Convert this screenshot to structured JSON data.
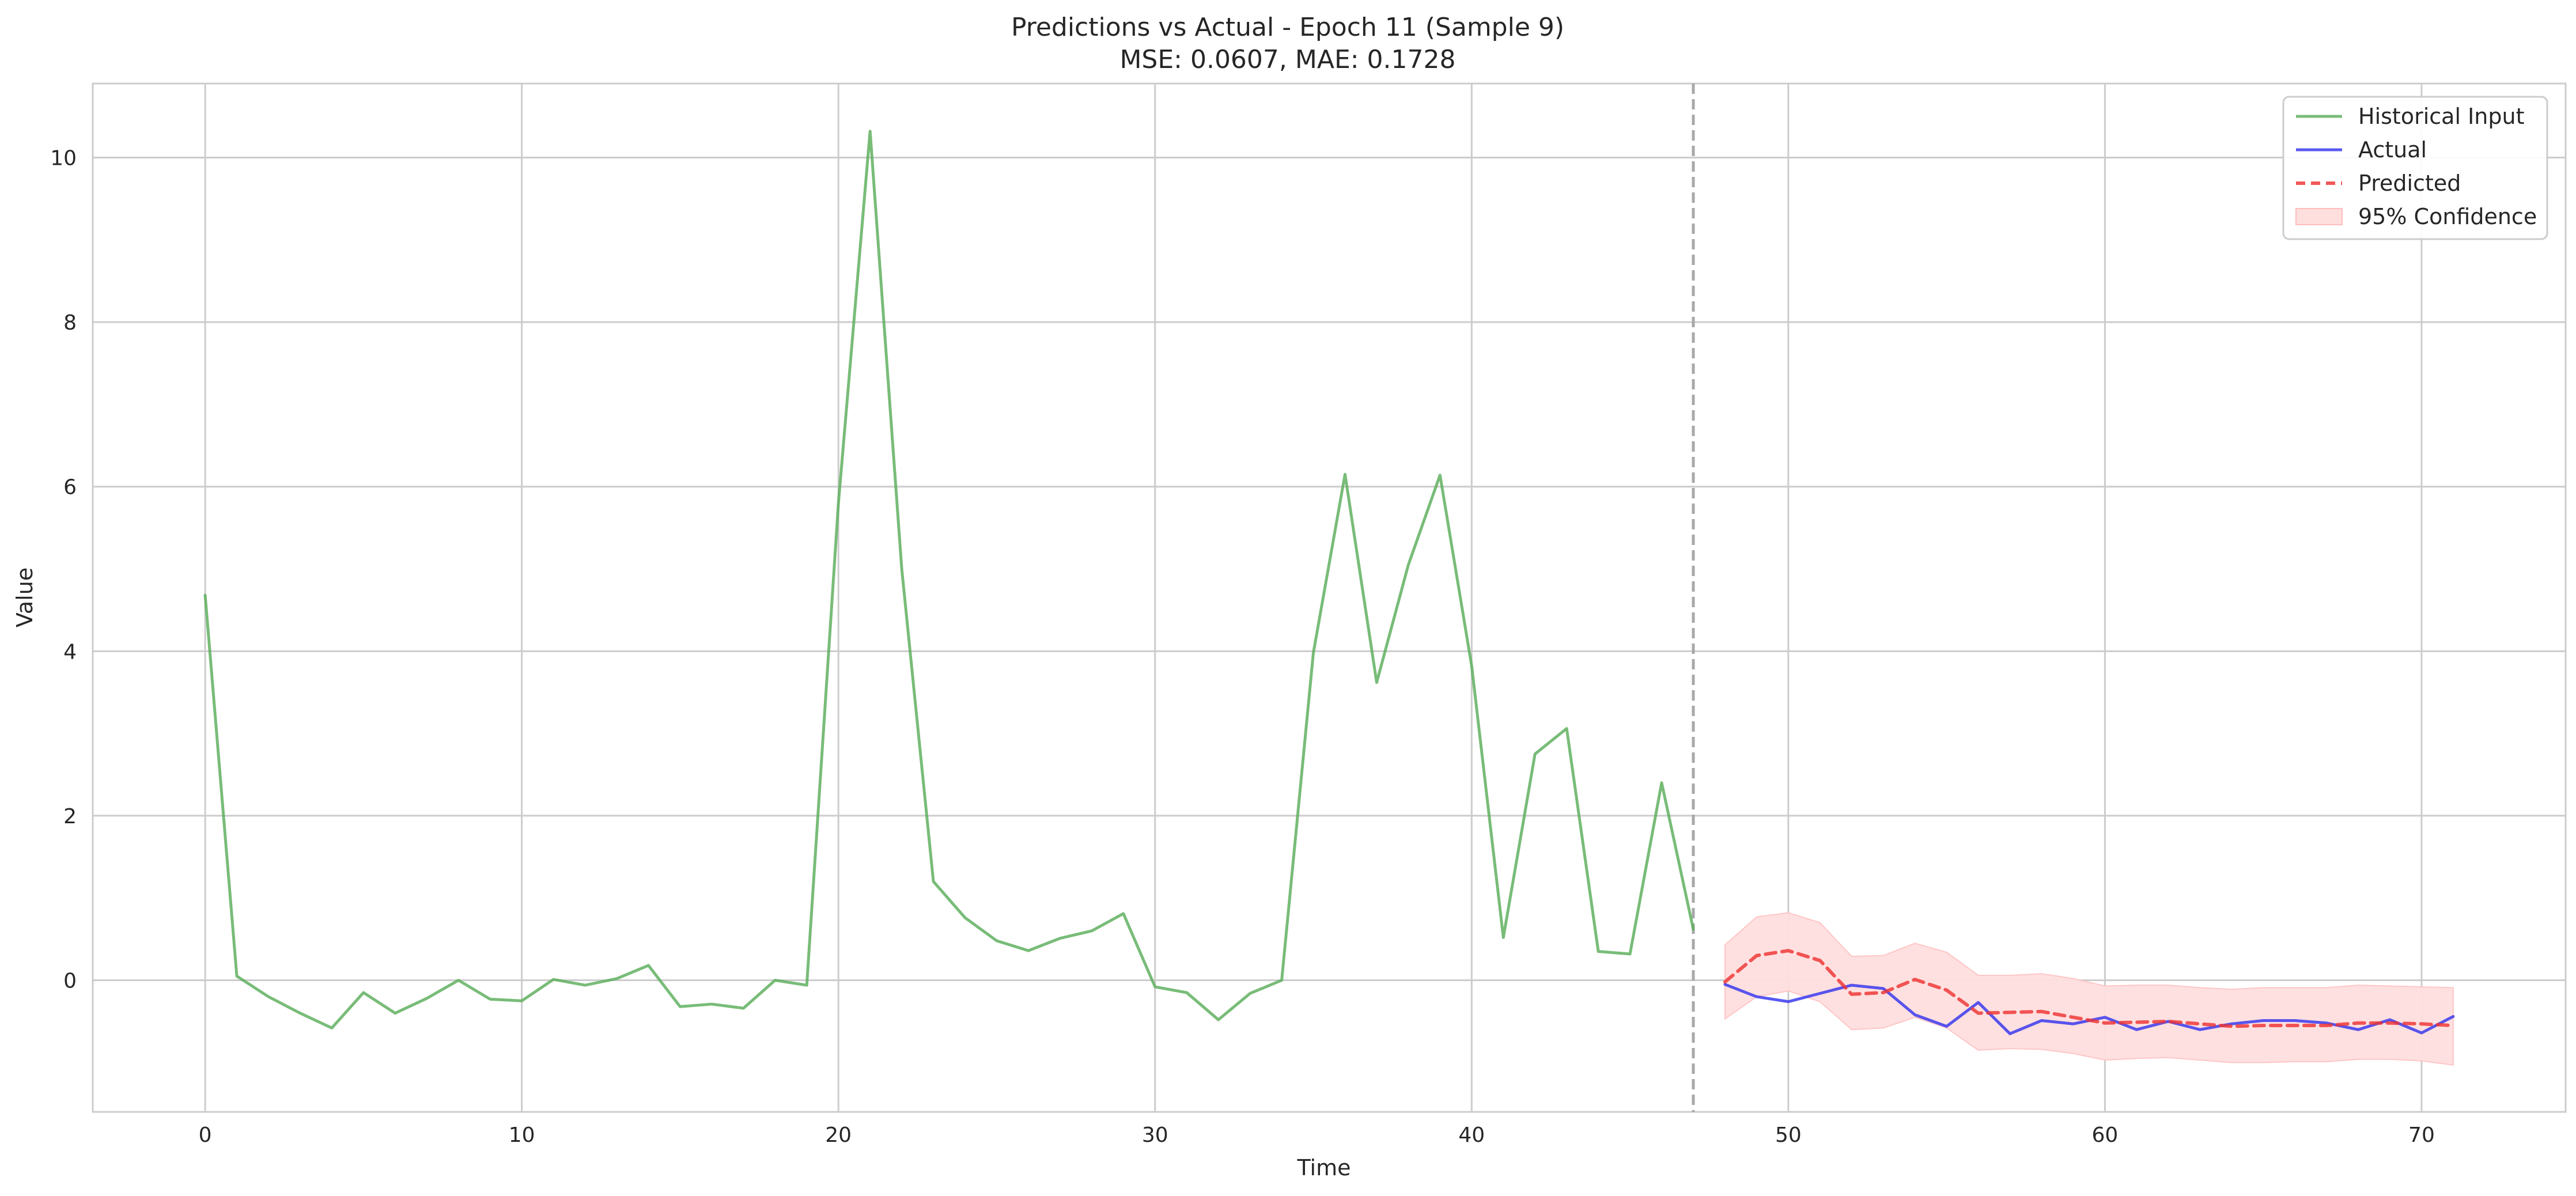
{
  "chart_data": {
    "type": "line",
    "title": "Predictions vs Actual - Epoch 11 (Sample 9)",
    "subtitle": "MSE: 0.0607, MAE: 0.1728",
    "xlabel": "Time",
    "ylabel": "Value",
    "xlim": [
      -3.55,
      74.55
    ],
    "ylim": [
      -1.6,
      10.9
    ],
    "xticks": [
      0,
      10,
      20,
      30,
      40,
      50,
      60,
      70
    ],
    "yticks": [
      0,
      2,
      4,
      6,
      8,
      10
    ],
    "grid": true,
    "legend_position": "top-right",
    "forecast_start_marker": 47,
    "series": [
      {
        "name": "Historical Input",
        "color": "#5aad5a",
        "style": "solid",
        "x": [
          0,
          1,
          2,
          3,
          4,
          5,
          6,
          7,
          8,
          9,
          10,
          11,
          12,
          13,
          14,
          15,
          16,
          17,
          18,
          19,
          20,
          21,
          22,
          23,
          24,
          25,
          26,
          27,
          28,
          29,
          30,
          31,
          32,
          33,
          34,
          35,
          36,
          37,
          38,
          39,
          40,
          41,
          42,
          43,
          44,
          45,
          46,
          47
        ],
        "values": [
          4.68,
          0.05,
          -0.2,
          -0.4,
          -0.58,
          -0.15,
          -0.4,
          -0.22,
          0.0,
          -0.23,
          -0.25,
          0.01,
          -0.06,
          0.02,
          0.18,
          -0.32,
          -0.29,
          -0.34,
          0.0,
          -0.06,
          5.8,
          10.32,
          5.0,
          1.2,
          0.76,
          0.48,
          0.36,
          0.51,
          0.6,
          0.81,
          -0.08,
          -0.15,
          -0.48,
          -0.16,
          0.0,
          3.98,
          6.15,
          3.62,
          5.05,
          6.14,
          3.82,
          0.52,
          2.75,
          3.06,
          0.35,
          0.32,
          2.4,
          0.62
        ]
      },
      {
        "name": "Actual",
        "color": "#3333ee",
        "style": "solid",
        "x": [
          48,
          49,
          50,
          51,
          52,
          53,
          54,
          55,
          56,
          57,
          58,
          59,
          60,
          61,
          62,
          63,
          64,
          65,
          66,
          67,
          68,
          69,
          70,
          71
        ],
        "values": [
          -0.05,
          -0.2,
          -0.26,
          -0.16,
          -0.06,
          -0.1,
          -0.42,
          -0.56,
          -0.27,
          -0.65,
          -0.49,
          -0.53,
          -0.45,
          -0.6,
          -0.5,
          -0.6,
          -0.53,
          -0.49,
          -0.49,
          -0.52,
          -0.6,
          -0.48,
          -0.64,
          -0.44
        ]
      },
      {
        "name": "Predicted",
        "color": "#ee3333",
        "style": "dashed",
        "x": [
          48,
          49,
          50,
          51,
          52,
          53,
          54,
          55,
          56,
          57,
          58,
          59,
          60,
          61,
          62,
          63,
          64,
          65,
          66,
          67,
          68,
          69,
          70,
          71
        ],
        "values": [
          -0.02,
          0.3,
          0.36,
          0.24,
          -0.17,
          -0.15,
          0.01,
          -0.12,
          -0.4,
          -0.39,
          -0.38,
          -0.45,
          -0.52,
          -0.51,
          -0.5,
          -0.53,
          -0.56,
          -0.55,
          -0.55,
          -0.55,
          -0.52,
          -0.52,
          -0.53,
          -0.55
        ]
      },
      {
        "name": "95% Confidence",
        "color": "#ffdede",
        "style": "band",
        "x": [
          48,
          49,
          50,
          51,
          52,
          53,
          54,
          55,
          56,
          57,
          58,
          59,
          60,
          61,
          62,
          63,
          64,
          65,
          66,
          67,
          68,
          69,
          70,
          71
        ],
        "lower": [
          -0.47,
          -0.2,
          -0.13,
          -0.26,
          -0.6,
          -0.58,
          -0.45,
          -0.58,
          -0.85,
          -0.83,
          -0.84,
          -0.89,
          -0.97,
          -0.95,
          -0.94,
          -0.97,
          -1.0,
          -1.0,
          -0.99,
          -0.99,
          -0.96,
          -0.96,
          -0.98,
          -1.03
        ],
        "upper": [
          0.43,
          0.77,
          0.82,
          0.7,
          0.29,
          0.3,
          0.45,
          0.34,
          0.06,
          0.06,
          0.08,
          0.02,
          -0.07,
          -0.06,
          -0.06,
          -0.09,
          -0.11,
          -0.09,
          -0.09,
          -0.09,
          -0.06,
          -0.07,
          -0.08,
          -0.09
        ]
      }
    ]
  }
}
